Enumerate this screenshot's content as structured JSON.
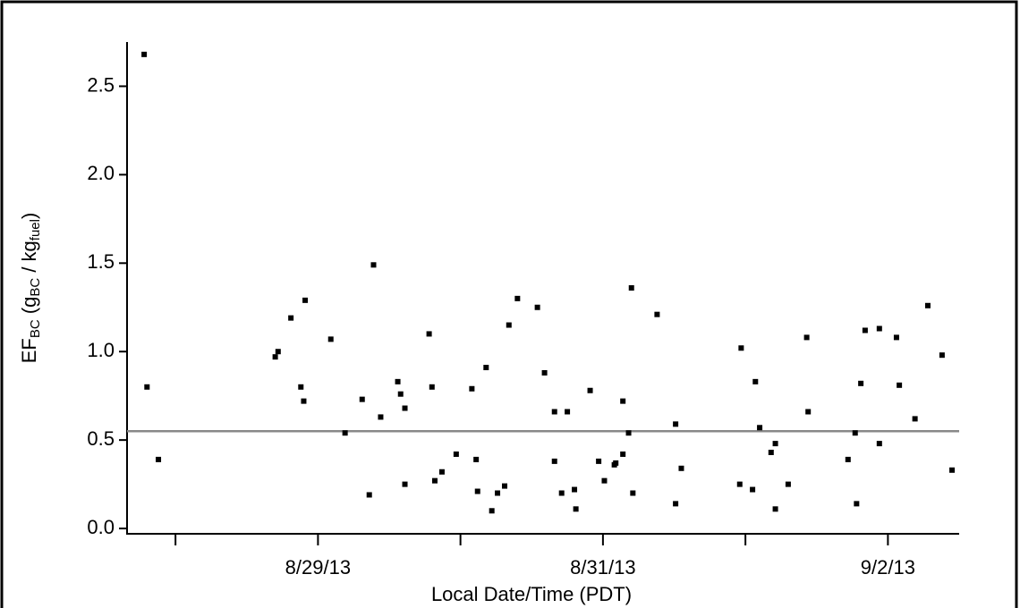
{
  "chart_data": {
    "type": "scatter",
    "x_label": "Local Date/Time (PDT)",
    "y_label": [
      {
        "text": "EF"
      },
      {
        "text": "BC",
        "sub": true
      },
      {
        "text": " (g"
      },
      {
        "text": "BC",
        "sub": true
      },
      {
        "text": " / kg"
      },
      {
        "text": "fuel",
        "sub": true
      },
      {
        "text": ")"
      }
    ],
    "xlim": [
      27.66,
      33.5
    ],
    "xticks": [
      {
        "value": 29,
        "label": "8/29/13"
      },
      {
        "value": 31,
        "label": "8/31/13"
      },
      {
        "value": 33,
        "label": "9/2/13"
      }
    ],
    "xminor_ticks": [
      28,
      30,
      32
    ],
    "ylim": [
      -0.03,
      2.75
    ],
    "yticks": [
      {
        "value": 0,
        "label": "0.0"
      },
      0.5,
      {
        "value": 1,
        "label": "1.0"
      },
      1.5,
      {
        "value": 2,
        "label": "2.0"
      },
      2.5
    ],
    "hline": 0.55,
    "hline_color": "#888888",
    "color": "#000000",
    "x": [
      27.78,
      27.8,
      27.88,
      28.7,
      28.72,
      28.81,
      28.88,
      28.9,
      28.91,
      29.09,
      29.19,
      29.31,
      29.36,
      29.39,
      29.44,
      29.56,
      29.58,
      29.61,
      29.61,
      29.78,
      29.8,
      29.82,
      29.87,
      29.97,
      30.08,
      30.11,
      30.12,
      30.18,
      30.22,
      30.26,
      30.31,
      30.34,
      30.4,
      30.54,
      30.59,
      30.66,
      30.66,
      30.71,
      30.75,
      30.8,
      30.81,
      30.91,
      30.97,
      31.01,
      31.08,
      31.09,
      31.14,
      31.14,
      31.18,
      31.2,
      31.21,
      31.38,
      31.51,
      31.51,
      31.55,
      31.96,
      31.97,
      32.05,
      32.07,
      32.1,
      32.18,
      32.21,
      32.21,
      32.3,
      32.43,
      32.44,
      32.72,
      32.77,
      32.78,
      32.81,
      32.84,
      32.94,
      32.94,
      33.06,
      33.08,
      33.19,
      33.28,
      33.38,
      33.45
    ],
    "values": [
      2.68,
      0.8,
      0.39,
      0.97,
      1.0,
      1.19,
      0.8,
      0.72,
      1.29,
      1.07,
      0.54,
      0.73,
      0.19,
      1.49,
      0.63,
      0.83,
      0.76,
      0.25,
      0.68,
      1.1,
      0.8,
      0.27,
      0.32,
      0.42,
      0.79,
      0.39,
      0.21,
      0.91,
      0.1,
      0.2,
      0.24,
      1.15,
      1.3,
      1.25,
      0.88,
      0.66,
      0.38,
      0.2,
      0.66,
      0.22,
      0.11,
      0.78,
      0.38,
      0.27,
      0.36,
      0.37,
      0.72,
      0.42,
      0.54,
      1.36,
      0.2,
      1.21,
      0.14,
      0.59,
      0.34,
      0.25,
      1.02,
      0.22,
      0.83,
      0.57,
      0.43,
      0.48,
      0.11,
      0.25,
      1.08,
      0.66,
      0.39,
      0.54,
      0.14,
      0.82,
      1.12,
      0.48,
      1.13,
      1.08,
      0.81,
      0.62,
      1.26,
      0.98,
      0.33
    ]
  }
}
